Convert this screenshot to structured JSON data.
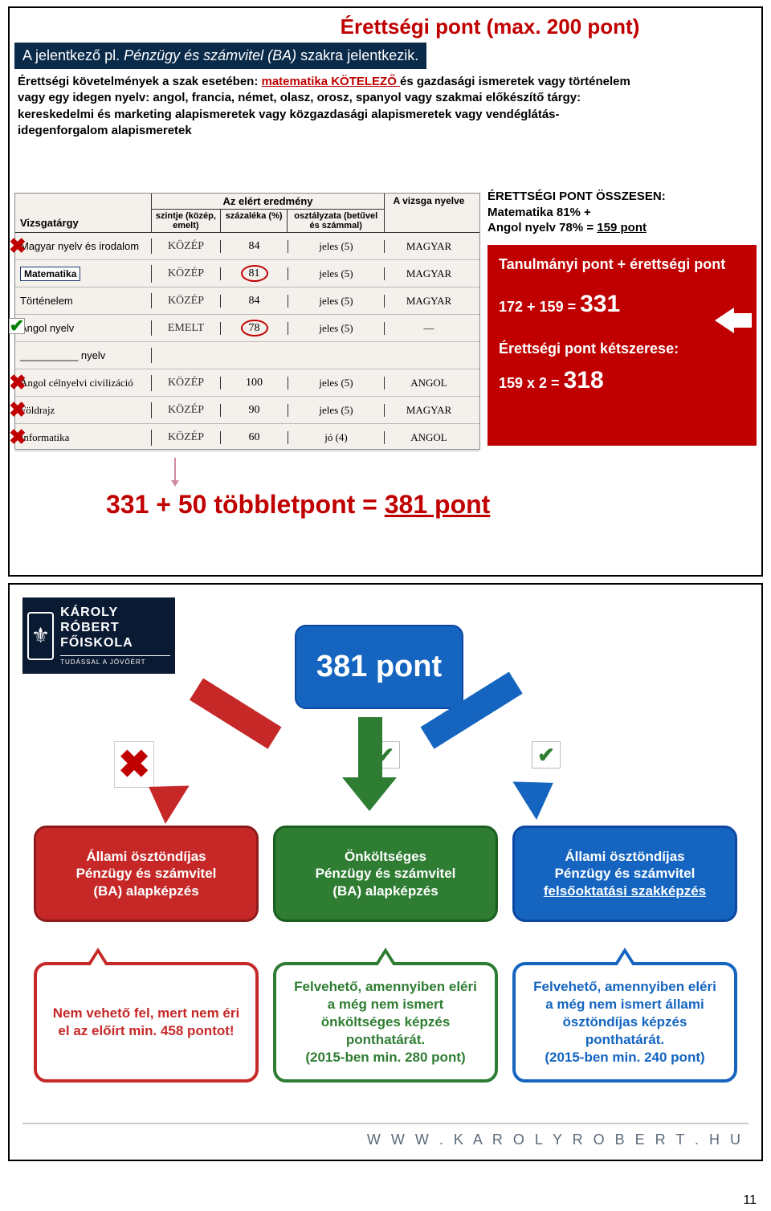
{
  "slide1": {
    "title": "Érettségi pont (max. 200 pont)",
    "subtitle_pre": "A jelentkező pl. ",
    "subtitle_italic": "Pénzügy és számvitel (BA)",
    "subtitle_post": " szakra jelentkezik.",
    "req_line1_a": "Érettségi követelmények a szak esetében: ",
    "req_kotelezo": "matematika KÖTELEZŐ ",
    "req_line1_b": "és gazdasági ismeretek vagy történelem",
    "req_line2": "vagy egy idegen nyelv: angol, francia, német, olasz, orosz, spanyol vagy szakmai előkészítő tárgy:",
    "req_line3": "kereskedelmi és marketing alapismeretek  vagy közgazdasági alapismeretek vagy vendéglátás-",
    "req_line4": "idegenforgalom alapismeretek",
    "table": {
      "header_subject": "Vizsgatárgy",
      "header_result": "Az elért eredmény",
      "header_lang": "A vizsga nyelve",
      "sub_szint": "szintje (közép, emelt)",
      "sub_szaz": "százaléka (%)",
      "sub_oszt": "osztályzata (betűvel és számmal)",
      "rows": [
        {
          "mark": "x",
          "subject": "Magyar nyelv és irodalom",
          "szint": "KÖZÉP",
          "szaz": "84",
          "oszt": "jeles (5)",
          "lang": "MAGYAR"
        },
        {
          "mark": "",
          "subject": "Matematika",
          "szint": "KÖZÉP",
          "szaz": "81",
          "oszt": "jeles (5)",
          "lang": "MAGYAR",
          "box": true,
          "circle": true
        },
        {
          "mark": "",
          "subject": "Történelem",
          "szint": "KÖZÉP",
          "szaz": "84",
          "oszt": "jeles (5)",
          "lang": "MAGYAR"
        },
        {
          "mark": "v",
          "subject": "Angol nyelv",
          "szint": "EMELT",
          "szaz": "78",
          "oszt": "jeles (5)",
          "lang": "—",
          "circle": true
        },
        {
          "mark": "",
          "subject": "__________ nyelv",
          "szint": "",
          "szaz": "",
          "oszt": "",
          "lang": ""
        },
        {
          "mark": "x",
          "subject": "Angol célnyelvi civilizáció",
          "szint": "KÖZÉP",
          "szaz": "100",
          "oszt": "jeles (5)",
          "lang": "ANGOL",
          "hand": true
        },
        {
          "mark": "x",
          "subject": "Földrajz",
          "szint": "KÖZÉP",
          "szaz": "90",
          "oszt": "jeles (5)",
          "lang": "MAGYAR",
          "hand": true
        },
        {
          "mark": "x",
          "subject": "Informatika",
          "szint": "KÖZÉP",
          "szaz": "60",
          "oszt": "jó (4)",
          "lang": "ANGOL",
          "hand": true
        }
      ]
    },
    "summary_title": "ÉRETTSÉGI PONT ÖSSZESEN:",
    "summary_l1": "Matematika 81% +",
    "summary_l2a": "Angol nyelv 78%  = ",
    "summary_l2b": "159 pont",
    "redbox_l1": "Tanulmányi pont + érettségi pont",
    "redbox_eq1a": "172 + 159 = ",
    "redbox_eq1b": "331",
    "redbox_l2": "Érettségi pont kétszerese:",
    "redbox_eq2a": "159 x 2 = ",
    "redbox_eq2b": "318",
    "bottom_eq_a": "331 + 50 többletpont = ",
    "bottom_eq_b": "381 pont"
  },
  "slide2": {
    "logo_line1": "KÁROLY RÓBERT",
    "logo_line2": "FŐISKOLA",
    "logo_sub": "TUDÁSSAL A JÖVŐÉRT",
    "pont": "381 pont",
    "cards": [
      {
        "color": "red",
        "text": "Állami ösztöndíjas\nPénzügy és számvitel\n(BA) alapképzés"
      },
      {
        "color": "green",
        "text": "Önköltséges\nPénzügy és számvitel\n(BA) alapképzés"
      },
      {
        "color": "blue",
        "text": "Állami ösztöndíjas\nPénzügy és számvitel\n",
        "underline": "felsőoktatási szakképzés"
      }
    ],
    "bubbles": [
      {
        "color": "red",
        "text": "Nem vehető fel, mert nem éri el az előírt min. 458 pontot!"
      },
      {
        "color": "green",
        "text": "Felvehető, amennyiben eléri a még nem ismert önköltséges képzés ponthatárát.\n(2015-ben min. 280 pont)"
      },
      {
        "color": "blue",
        "text": "Felvehető, amennyiben eléri a még nem ismert állami ösztöndíjas képzés ponthatárát.\n(2015-ben min. 240 pont)"
      }
    ],
    "footer": "W W W . K A R O L Y R O B E R T . H U"
  },
  "page_number": "11",
  "colors": {
    "dark_red": "#c00000",
    "navy": "#0a2a4a",
    "red_card": "#c62828",
    "green_card": "#2e7d32",
    "blue_card": "#1565c0"
  }
}
